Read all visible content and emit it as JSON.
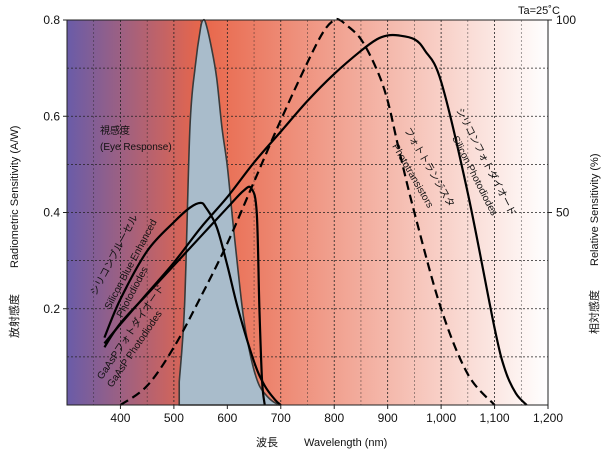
{
  "chart_data": {
    "type": "line",
    "annotation_top_right": "Ta=25˚C",
    "xlabel_jp": "波長",
    "xlabel": "Wavelength (nm)",
    "ylabel_left_jp": "放射感度",
    "ylabel_left": "Radiometric Sensitivity (A/W)",
    "ylabel_right_jp": "相対感度",
    "ylabel_right": "Relative Sensitivity (%)",
    "xlim": [
      300,
      1200
    ],
    "ylim": [
      0,
      0.8
    ],
    "ylim_right": [
      0,
      100
    ],
    "x_ticks": [
      {
        "value": 400,
        "label": "400"
      },
      {
        "value": 500,
        "label": "500"
      },
      {
        "value": 600,
        "label": "600"
      },
      {
        "value": 700,
        "label": "700"
      },
      {
        "value": 800,
        "label": "800"
      },
      {
        "value": 900,
        "label": "900"
      },
      {
        "value": 1000,
        "label": "1,000"
      },
      {
        "value": 1100,
        "label": "1,100"
      },
      {
        "value": 1200,
        "label": "1,200"
      }
    ],
    "y_ticks_left": [
      {
        "value": 0.2,
        "label": "0.2"
      },
      {
        "value": 0.4,
        "label": "0.4"
      },
      {
        "value": 0.6,
        "label": "0.6"
      },
      {
        "value": 0.8,
        "label": "0.8"
      }
    ],
    "y_ticks_right": [
      {
        "value": 50,
        "label": "50"
      },
      {
        "value": 100,
        "label": "100"
      }
    ],
    "grid": true,
    "background_gradient_colors": [
      "#6a5ca8",
      "#e8664a",
      "#ffffff"
    ],
    "series": [
      {
        "name": "視感度 (Eye Response)",
        "axis": "right",
        "style": "filled",
        "color": "#a9bccb",
        "x": [
          510,
          520,
          530,
          540,
          550,
          555,
          560,
          570,
          580,
          590,
          600,
          610,
          620,
          630,
          640,
          650,
          660,
          670,
          680,
          690,
          700
        ],
        "y": [
          6,
          26,
          72,
          88,
          98,
          100,
          99,
          93,
          85,
          72,
          62,
          48,
          35,
          23,
          15,
          9,
          5,
          3,
          1.5,
          0.5,
          0
        ]
      },
      {
        "name": "Silicon Photodiodes",
        "axis": "right",
        "style": "solid",
        "color": "#000000",
        "x": [
          370,
          400,
          450,
          500,
          550,
          600,
          650,
          700,
          750,
          800,
          850,
          880,
          900,
          920,
          950,
          970,
          1000,
          1050,
          1100,
          1120,
          1140,
          1160
        ],
        "y": [
          16,
          21,
          29,
          37,
          46,
          54,
          63,
          71,
          79,
          86,
          92,
          95,
          96,
          96,
          95,
          92,
          84,
          55,
          20,
          9,
          3,
          0
        ]
      },
      {
        "name": "Photo Transistors",
        "axis": "right",
        "style": "dashed",
        "color": "#000000",
        "x": [
          400,
          450,
          500,
          550,
          600,
          650,
          700,
          750,
          780,
          800,
          810,
          820,
          850,
          880,
          900,
          920,
          950,
          1000,
          1050,
          1100
        ],
        "y": [
          0,
          5,
          15,
          28,
          42,
          58,
          74,
          89,
          97,
          100,
          100,
          99,
          95,
          87,
          79,
          67,
          50,
          25,
          8,
          0
        ]
      },
      {
        "name": "Silicon Blue Enhanced Photodiodes",
        "axis": "left",
        "style": "solid",
        "color": "#000000",
        "x": [
          370,
          400,
          450,
          500,
          530,
          550,
          560,
          580,
          600,
          620,
          650,
          670,
          690,
          700
        ],
        "y": [
          0.14,
          0.22,
          0.32,
          0.38,
          0.41,
          0.42,
          0.41,
          0.37,
          0.29,
          0.2,
          0.09,
          0.04,
          0.01,
          0
        ]
      },
      {
        "name": "GaAsP Photodiodes",
        "axis": "left",
        "style": "solid",
        "color": "#000000",
        "x": [
          370,
          400,
          450,
          500,
          550,
          600,
          630,
          645,
          655,
          660,
          665,
          670
        ],
        "y": [
          0.12,
          0.17,
          0.23,
          0.29,
          0.35,
          0.41,
          0.445,
          0.45,
          0.4,
          0.2,
          0.05,
          0
        ]
      }
    ],
    "annotations": [
      {
        "id": "eye_jp",
        "text": "視感度"
      },
      {
        "id": "eye_en",
        "text": "(Eye Response)"
      },
      {
        "id": "blue_jp",
        "text": "シリコンブルーセル"
      },
      {
        "id": "blue_en1",
        "text": "Silicon Blue Enhanced"
      },
      {
        "id": "blue_en2",
        "text": "Photodiodes"
      },
      {
        "id": "gaasp_jp",
        "text": "GaAsPフォトダイオード"
      },
      {
        "id": "gaasp_en",
        "text": "GaAsP Photodiodes"
      },
      {
        "id": "pt_jp",
        "text": "フォトトランジスタ"
      },
      {
        "id": "pt_en",
        "text": "Phototransistors"
      },
      {
        "id": "si_jp",
        "text": "シリコンフォトダイオード"
      },
      {
        "id": "si_en",
        "text": "Silicon Photodiodes"
      }
    ]
  }
}
